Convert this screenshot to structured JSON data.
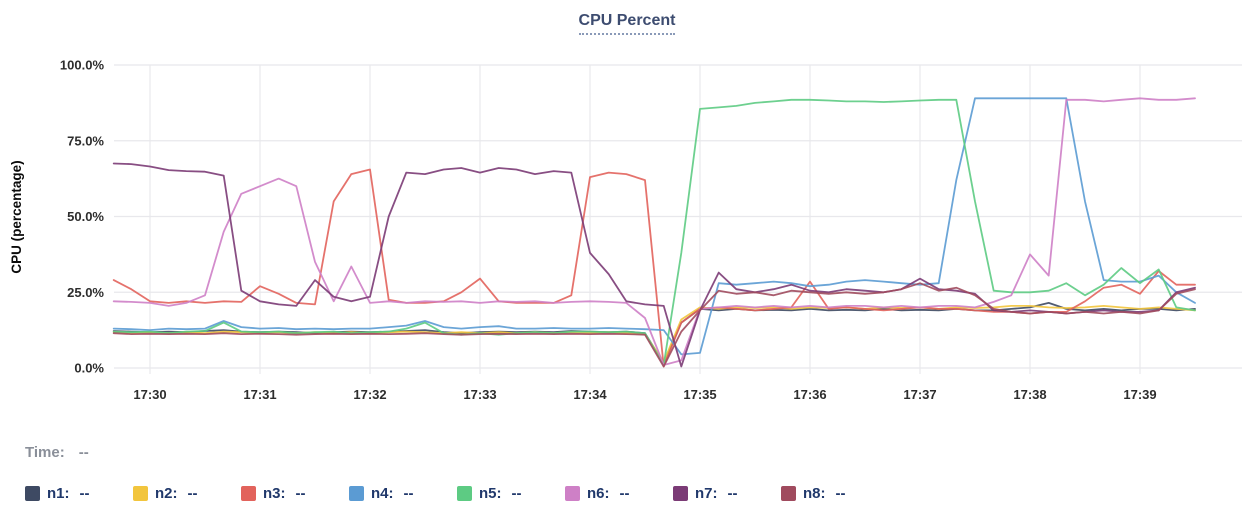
{
  "title": {
    "text": "CPU Percent"
  },
  "time_row": {
    "label": "Time:",
    "value": "--"
  },
  "legend": {
    "position": "bottom",
    "items": [
      {
        "label": "n1:",
        "value": "--"
      },
      {
        "label": "n2:",
        "value": "--"
      },
      {
        "label": "n3:",
        "value": "--"
      },
      {
        "label": "n4:",
        "value": "--"
      },
      {
        "label": "n5:",
        "value": "--"
      },
      {
        "label": "n6:",
        "value": "--"
      },
      {
        "label": "n7:",
        "value": "--"
      },
      {
        "label": "n8:",
        "value": "--"
      }
    ]
  },
  "colors": {
    "background": "#ffffff",
    "grid": "#e8e8ec",
    "tick_text": "#2d2d2d",
    "axis_title_text": "#0a0a0a",
    "title_text": "#3d4c70",
    "title_underline": "#8a9ab8",
    "time_text": "#8a8f99",
    "legend_text": "#20386b"
  },
  "chart_data": {
    "type": "line",
    "title": "CPU Percent",
    "ylabel": "CPU (percentage)",
    "xlabel": "",
    "ylim": [
      0,
      100
    ],
    "grid": true,
    "legend_position": "bottom",
    "y_ticks": [
      {
        "label": "100.0%",
        "value": 100
      },
      {
        "label": "75.0%",
        "value": 75
      },
      {
        "label": "50.0%",
        "value": 50
      },
      {
        "label": "25.0%",
        "value": 25
      },
      {
        "label": "0.0%",
        "value": 0
      }
    ],
    "x_ticks": [
      {
        "label": "17:30",
        "minute": 0
      },
      {
        "label": "17:31",
        "minute": 1
      },
      {
        "label": "17:32",
        "minute": 2
      },
      {
        "label": "17:33",
        "minute": 3
      },
      {
        "label": "17:34",
        "minute": 4
      },
      {
        "label": "17:35",
        "minute": 5
      },
      {
        "label": "17:36",
        "minute": 6
      },
      {
        "label": "17:37",
        "minute": 7
      },
      {
        "label": "17:38",
        "minute": 8
      },
      {
        "label": "17:39",
        "minute": 9
      }
    ],
    "x_minutes_after_17_30": [
      -0.33,
      -0.17,
      0,
      0.17,
      0.33,
      0.5,
      0.67,
      0.83,
      1,
      1.17,
      1.33,
      1.5,
      1.67,
      1.83,
      2,
      2.17,
      2.33,
      2.5,
      2.67,
      2.83,
      3,
      3.17,
      3.33,
      3.5,
      3.67,
      3.83,
      4,
      4.17,
      4.33,
      4.5,
      4.67,
      4.83,
      5,
      5.17,
      5.33,
      5.5,
      5.67,
      5.83,
      6,
      6.17,
      6.33,
      6.5,
      6.67,
      6.83,
      7,
      7.17,
      7.33,
      7.5,
      7.67,
      7.83,
      8,
      8.17,
      8.33,
      8.5,
      8.67,
      8.83,
      9,
      9.17,
      9.33,
      9.5
    ],
    "series": [
      {
        "name": "n1",
        "color": "#3E4A63",
        "values": [
          12.2,
          12,
          11.8,
          12,
          11.8,
          12.2,
          12.5,
          12,
          11.8,
          12,
          11.8,
          11.5,
          11.8,
          12,
          11.8,
          12,
          12.2,
          12.5,
          11.8,
          11.5,
          11.8,
          12,
          11.8,
          12,
          11.8,
          12.2,
          12,
          11.8,
          12,
          11.5,
          1.5,
          15,
          19.5,
          19,
          19.5,
          19,
          19.2,
          19,
          19.5,
          19,
          19.2,
          19,
          19.5,
          19,
          19.2,
          19,
          19.5,
          19,
          19,
          19.5,
          20,
          21.5,
          19.5,
          19,
          19.5,
          19,
          19.5,
          19.5,
          19,
          19.5
        ]
      },
      {
        "name": "n2",
        "color": "#F2C53D",
        "values": [
          11.8,
          11.5,
          11.8,
          11.5,
          11.8,
          11.5,
          12,
          11.8,
          11.5,
          11.8,
          11.5,
          11.8,
          11.5,
          11.8,
          11.5,
          11.8,
          12,
          11.8,
          11.5,
          11.8,
          11.5,
          11.8,
          11.5,
          11.8,
          11.5,
          11.8,
          11.5,
          11.8,
          11.5,
          11.2,
          2,
          16,
          20,
          19.5,
          20,
          19.8,
          20,
          19.5,
          20,
          19.8,
          20,
          19.5,
          20,
          19.8,
          20,
          19.5,
          20,
          19.8,
          20,
          20.5,
          20.5,
          20,
          19.8,
          20,
          20.5,
          20,
          19.5,
          20,
          19.5,
          19
        ]
      },
      {
        "name": "n3",
        "color": "#E2635C",
        "values": [
          29,
          26,
          22,
          21.5,
          22,
          21.5,
          22,
          21.8,
          27,
          24.5,
          21.5,
          21,
          55,
          64,
          65.5,
          22.5,
          21.5,
          21.5,
          22,
          25,
          29.5,
          22,
          21.5,
          21.5,
          21.5,
          24,
          63,
          64.5,
          64,
          62,
          0.5,
          15,
          19.5,
          20,
          19.5,
          19,
          19.5,
          20,
          28.5,
          19.5,
          20,
          19.5,
          19,
          19.5,
          20,
          19.5,
          19.5,
          19,
          18.5,
          18.5,
          18,
          18.5,
          18.5,
          22,
          26.5,
          27.5,
          24.5,
          32,
          27.5,
          27.5
        ]
      },
      {
        "name": "n4",
        "color": "#5B9BD3",
        "values": [
          13,
          12.8,
          12.5,
          13,
          12.8,
          13,
          15.5,
          13.5,
          13,
          13.2,
          12.8,
          13,
          12.8,
          13,
          13,
          13.5,
          14,
          15.5,
          13.5,
          13,
          13.5,
          13.8,
          13,
          13,
          13.2,
          13,
          13,
          13.2,
          13,
          12.8,
          12.5,
          4.5,
          5,
          28,
          27.5,
          28,
          28.5,
          28,
          27,
          27.5,
          28.5,
          29,
          28.5,
          28,
          27.5,
          28,
          62,
          89,
          89,
          89,
          89,
          89,
          89,
          55,
          29,
          28.5,
          28.5,
          30.5,
          25,
          21.5
        ]
      },
      {
        "name": "n5",
        "color": "#5DCB83",
        "values": [
          12,
          11.8,
          12,
          11.5,
          12,
          12.2,
          15,
          12,
          11.8,
          12,
          11.5,
          11.8,
          12,
          11.5,
          11.8,
          12,
          13,
          15,
          11.5,
          11,
          11.5,
          11,
          11.5,
          11.8,
          11.5,
          12,
          12,
          11.8,
          12,
          11.5,
          1,
          38,
          85.5,
          86,
          86.5,
          87.5,
          88,
          88.5,
          88.5,
          88.3,
          88,
          88,
          87.8,
          88,
          88.3,
          88.5,
          88.5,
          55,
          25.5,
          25,
          25,
          25.5,
          28,
          24,
          27.5,
          33,
          28,
          32.5,
          20,
          19
        ]
      },
      {
        "name": "n6",
        "color": "#CE80C6",
        "values": [
          22,
          21.8,
          21.5,
          20.5,
          21.5,
          24,
          45,
          57.5,
          60,
          62.5,
          60,
          35,
          22,
          33.5,
          21.5,
          22,
          21.5,
          22,
          21.8,
          22,
          21.5,
          22,
          21.8,
          22,
          21.5,
          21.8,
          22,
          21.8,
          21.5,
          16.5,
          1,
          2.5,
          19.5,
          20,
          20.5,
          20,
          20.5,
          20,
          20.5,
          20,
          20.5,
          20.5,
          20,
          20.5,
          20,
          20.5,
          20.5,
          20,
          21.8,
          24,
          37.5,
          30.5,
          88.5,
          88.5,
          88,
          88.5,
          89,
          88.5,
          88.5,
          89
        ]
      },
      {
        "name": "n7",
        "color": "#7B3B76",
        "values": [
          67.5,
          67.3,
          66.5,
          65.3,
          65,
          64.8,
          63.5,
          25.5,
          22,
          21,
          20.5,
          29,
          23.5,
          22,
          23.5,
          50,
          64.5,
          64,
          65.5,
          66,
          64.5,
          66,
          65.5,
          64,
          65,
          64.5,
          38,
          31,
          22,
          21,
          20.5,
          0.5,
          19,
          31.5,
          26,
          25,
          26,
          27.5,
          25.5,
          25,
          26,
          25.5,
          25,
          26,
          29.5,
          26,
          25.5,
          24.5,
          19,
          18.5,
          19,
          18.5,
          18,
          18.5,
          19,
          18.5,
          18.5,
          19,
          25,
          26.5
        ]
      },
      {
        "name": "n8",
        "color": "#A04B5E",
        "values": [
          11.5,
          11.2,
          11.3,
          11.2,
          11.3,
          11.2,
          11.5,
          11.2,
          11.3,
          11.2,
          11,
          11.2,
          11.3,
          11.2,
          11.3,
          11.2,
          11.3,
          11.5,
          11.2,
          11,
          11.2,
          11.3,
          11.2,
          11.3,
          11.2,
          11.3,
          11.2,
          11.3,
          11.2,
          11,
          0.5,
          12,
          19,
          25.5,
          24.5,
          25,
          24,
          25.5,
          25,
          24.5,
          25,
          24.5,
          25,
          26,
          28,
          25.5,
          26.5,
          24,
          19.5,
          18.5,
          18,
          18.5,
          18,
          18.5,
          18,
          18.5,
          18,
          19,
          24.5,
          26
        ]
      }
    ]
  }
}
